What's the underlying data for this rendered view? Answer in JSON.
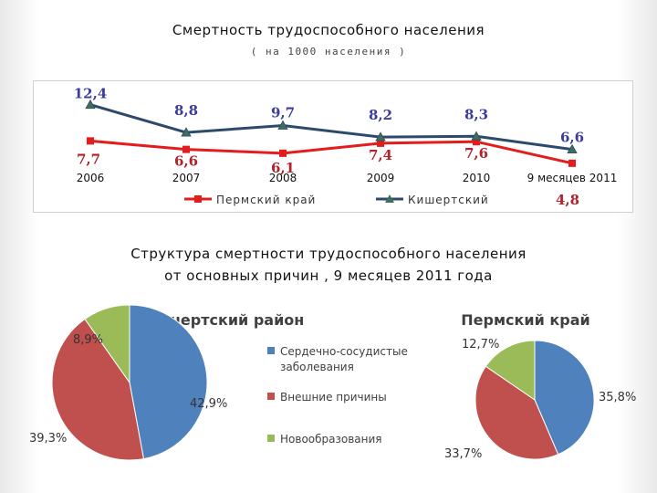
{
  "title": "Смертность  трудоспособного  населения",
  "subtitle": "( на   1000   населения )",
  "section_title_line1": "Структура  смертности  трудоспособного  населения",
  "section_title_line2": "от  основных  причин ,  9  месяцев  2011  года",
  "colors": {
    "perm": "#e31c1c",
    "kishert": "#2e4a6b",
    "label_blue": "#3b3b9e",
    "label_red": "#b2222a"
  },
  "chart_data": [
    {
      "type": "line",
      "categories": [
        "2006",
        "2007",
        "2008",
        "2009",
        "2010",
        "9 месяцев 2011"
      ],
      "series": [
        {
          "name": "Пермский край",
          "values": [
            7.7,
            6.6,
            6.1,
            7.4,
            7.6,
            4.8
          ],
          "labels": [
            "7,7",
            "6,6",
            "6,1",
            "7,4",
            "7,6",
            "4,8"
          ],
          "color": "#e31c1c",
          "marker": "square"
        },
        {
          "name": "Кишертский",
          "values": [
            12.4,
            8.8,
            9.7,
            8.2,
            8.3,
            6.6
          ],
          "labels": [
            "12,4",
            "8,8",
            "9,7",
            "8,2",
            "8,3",
            "6,6"
          ],
          "color": "#2e4a6b",
          "marker": "triangle"
        }
      ],
      "legend_position": "bottom",
      "ylim": [
        3,
        14.5
      ],
      "grid": false
    },
    {
      "type": "pie",
      "title": "Кишертский район",
      "labels": [
        "Сердечно-сосудистые заболевания",
        "Внешние причины",
        "Новообразования"
      ],
      "values": [
        42.9,
        39.3,
        8.9
      ],
      "value_labels": [
        "42,9%",
        "39,3%",
        "8,9%"
      ],
      "colors": [
        "#4f81bd",
        "#c0504d",
        "#9bbb59"
      ],
      "legend_position": "right"
    },
    {
      "type": "pie",
      "title": "Пермский край",
      "labels": [
        "Сердечно-сосудистые заболевания",
        "Внешние причины",
        "Новообразования"
      ],
      "values": [
        35.8,
        33.7,
        12.7
      ],
      "value_labels": [
        "35,8%",
        "33,7%",
        "12,7%"
      ],
      "colors": [
        "#4f81bd",
        "#c0504d",
        "#9bbb59"
      ]
    }
  ]
}
